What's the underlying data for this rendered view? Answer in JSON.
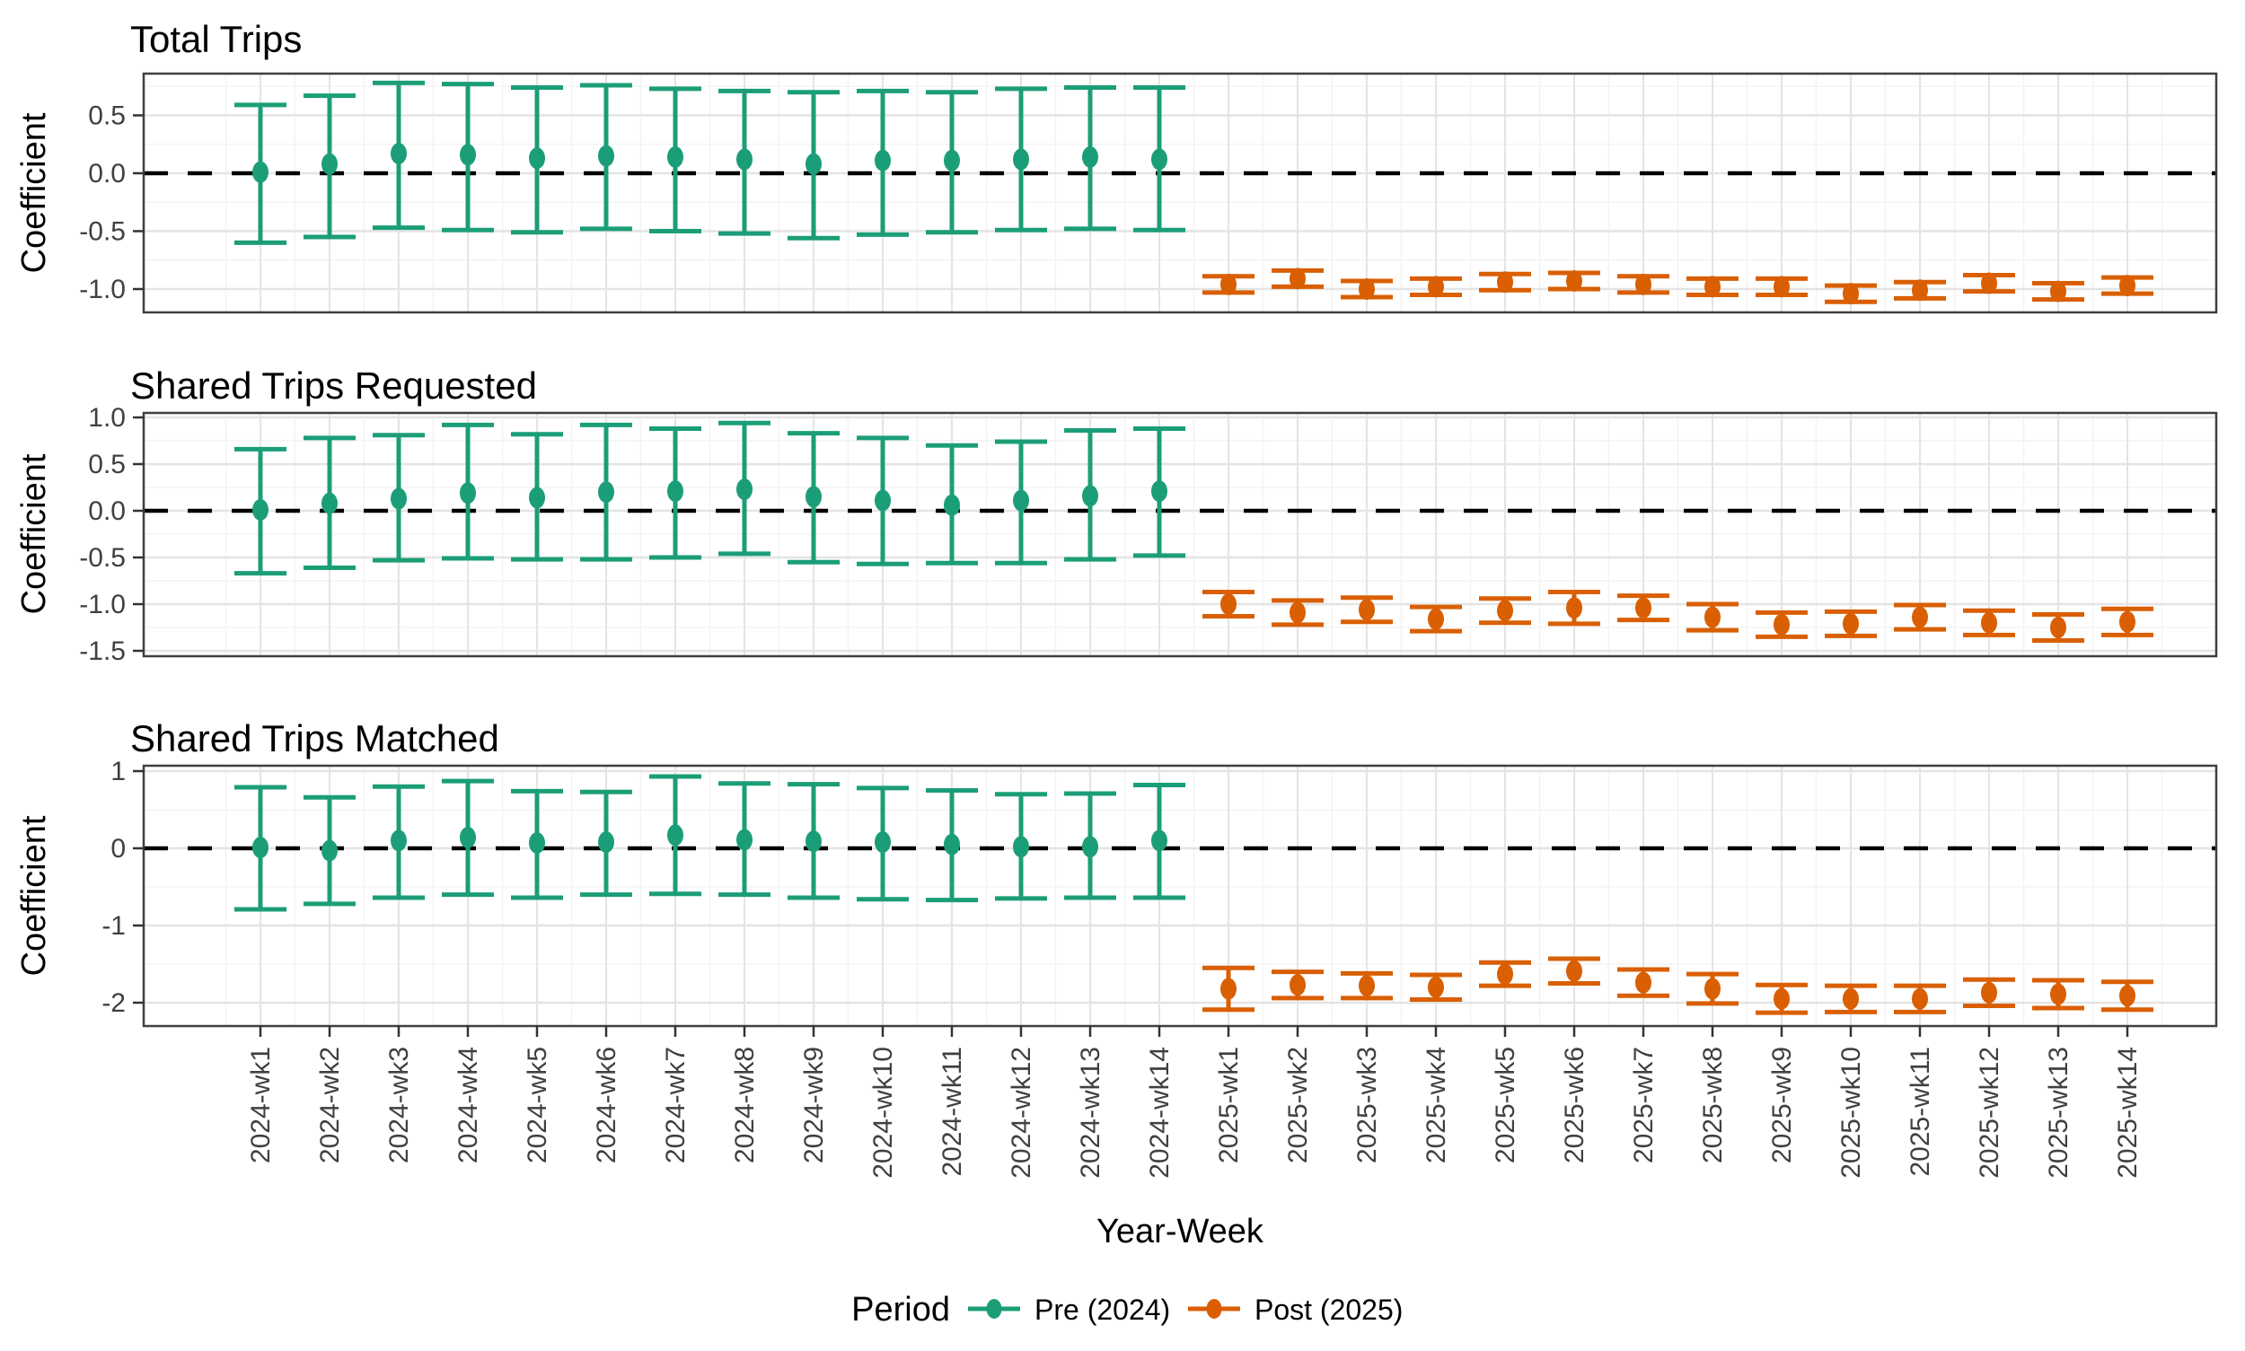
{
  "axis": {
    "x_title": "Year-Week",
    "y_title": "Coefficient"
  },
  "legend": {
    "title": "Period",
    "entries": [
      {
        "label": "Pre (2024)",
        "color": "#1b9e77"
      },
      {
        "label": "Post (2025)",
        "color": "#d95f02"
      }
    ]
  },
  "colors": {
    "pre": "#1b9e77",
    "post": "#d95f02",
    "zero_line": "#000000",
    "grid_major": "#e4e4e4",
    "grid_minor": "#f3f3f3",
    "panel_border": "#3f3f3f",
    "tick_mark": "#333333",
    "tick_text": "#404040"
  },
  "categories": [
    "2024-wk1",
    "2024-wk2",
    "2024-wk3",
    "2024-wk4",
    "2024-wk5",
    "2024-wk6",
    "2024-wk7",
    "2024-wk8",
    "2024-wk9",
    "2024-wk10",
    "2024-wk11",
    "2024-wk12",
    "2024-wk13",
    "2024-wk14",
    "2025-wk1",
    "2025-wk2",
    "2025-wk3",
    "2025-wk4",
    "2025-wk5",
    "2025-wk6",
    "2025-wk7",
    "2025-wk8",
    "2025-wk9",
    "2025-wk10",
    "2025-wk11",
    "2025-wk12",
    "2025-wk13",
    "2025-wk14"
  ],
  "chart_data": [
    {
      "type": "errorbar",
      "title": "Total Trips",
      "ylabel": "Coefficient",
      "xlabel": "Year-Week",
      "grid": true,
      "legend_position": "bottom",
      "ytick_values": [
        0.5,
        0.0,
        -0.5,
        -1.0
      ],
      "ytick_labels": [
        "0.5",
        "0.0",
        "-0.5",
        "-1.0"
      ],
      "yticks_minor": [
        0.75,
        0.25,
        -0.25,
        -0.75
      ],
      "ylim": [
        -1.2,
        0.86
      ],
      "zero_line": 0.0,
      "series": [
        {
          "name": "Pre (2024)",
          "color": "#1b9e77",
          "start_index": 0,
          "estimates": [
            0.01,
            0.08,
            0.17,
            0.16,
            0.13,
            0.15,
            0.14,
            0.12,
            0.08,
            0.11,
            0.11,
            0.12,
            0.14,
            0.12
          ],
          "upper": [
            0.59,
            0.67,
            0.78,
            0.77,
            0.74,
            0.76,
            0.73,
            0.71,
            0.7,
            0.71,
            0.7,
            0.73,
            0.74,
            0.74
          ],
          "lower": [
            -0.6,
            -0.55,
            -0.47,
            -0.49,
            -0.51,
            -0.48,
            -0.5,
            -0.52,
            -0.56,
            -0.53,
            -0.51,
            -0.49,
            -0.48,
            -0.49
          ]
        },
        {
          "name": "Post (2025)",
          "color": "#d95f02",
          "start_index": 14,
          "estimates": [
            -0.96,
            -0.91,
            -1.0,
            -0.98,
            -0.94,
            -0.93,
            -0.96,
            -0.98,
            -0.98,
            -1.04,
            -1.01,
            -0.95,
            -1.02,
            -0.97
          ],
          "upper": [
            -0.89,
            -0.84,
            -0.93,
            -0.91,
            -0.87,
            -0.86,
            -0.89,
            -0.91,
            -0.91,
            -0.97,
            -0.94,
            -0.88,
            -0.95,
            -0.9
          ],
          "lower": [
            -1.03,
            -0.98,
            -1.07,
            -1.05,
            -1.01,
            -1.0,
            -1.03,
            -1.05,
            -1.05,
            -1.11,
            -1.08,
            -1.02,
            -1.09,
            -1.04
          ]
        }
      ]
    },
    {
      "type": "errorbar",
      "title": "Shared Trips Requested",
      "ylabel": "Coefficient",
      "xlabel": "Year-Week",
      "grid": true,
      "legend_position": "bottom",
      "ytick_values": [
        1.0,
        0.5,
        0.0,
        -0.5,
        -1.0,
        -1.5
      ],
      "ytick_labels": [
        "1.0",
        "0.5",
        "0.0",
        "-0.5",
        "-1.0",
        "-1.5"
      ],
      "yticks_minor": [
        0.75,
        0.25,
        -0.25,
        -0.75,
        -1.25
      ],
      "ylim": [
        -1.62,
        1.05
      ],
      "zero_line": 0.0,
      "series": [
        {
          "name": "Pre (2024)",
          "color": "#1b9e77",
          "start_index": 0,
          "estimates": [
            0.01,
            0.08,
            0.13,
            0.19,
            0.14,
            0.2,
            0.21,
            0.23,
            0.15,
            0.11,
            0.06,
            0.11,
            0.16,
            0.21
          ],
          "upper": [
            0.66,
            0.78,
            0.81,
            0.92,
            0.82,
            0.92,
            0.88,
            0.94,
            0.83,
            0.78,
            0.7,
            0.74,
            0.86,
            0.88
          ],
          "lower": [
            -0.67,
            -0.61,
            -0.53,
            -0.51,
            -0.52,
            -0.52,
            -0.5,
            -0.46,
            -0.55,
            -0.57,
            -0.56,
            -0.56,
            -0.52,
            -0.48
          ]
        },
        {
          "name": "Post (2025)",
          "color": "#d95f02",
          "start_index": 14,
          "estimates": [
            -1.0,
            -1.09,
            -1.06,
            -1.16,
            -1.07,
            -1.04,
            -1.04,
            -1.14,
            -1.22,
            -1.21,
            -1.14,
            -1.2,
            -1.25,
            -1.19
          ],
          "upper": [
            -0.87,
            -0.96,
            -0.93,
            -1.03,
            -0.94,
            -0.87,
            -0.91,
            -1.0,
            -1.09,
            -1.08,
            -1.01,
            -1.07,
            -1.11,
            -1.05
          ],
          "lower": [
            -1.13,
            -1.22,
            -1.19,
            -1.29,
            -1.2,
            -1.21,
            -1.17,
            -1.28,
            -1.35,
            -1.34,
            -1.27,
            -1.33,
            -1.39,
            -1.33
          ]
        }
      ]
    },
    {
      "type": "errorbar",
      "title": "Shared Trips Matched",
      "ylabel": "Coefficient",
      "xlabel": "Year-Week",
      "grid": true,
      "legend_position": "bottom",
      "ytick_values": [
        1,
        0,
        -1,
        -2
      ],
      "ytick_labels": [
        "1",
        "0",
        "-1",
        "-2"
      ],
      "yticks_minor": [
        0.5,
        -0.5,
        -1.5
      ],
      "ylim": [
        -2.33,
        1.06
      ],
      "zero_line": 0.0,
      "series": [
        {
          "name": "Pre (2024)",
          "color": "#1b9e77",
          "start_index": 0,
          "estimates": [
            0.01,
            -0.03,
            0.1,
            0.14,
            0.07,
            0.08,
            0.17,
            0.11,
            0.09,
            0.08,
            0.05,
            0.02,
            0.02,
            0.1
          ],
          "upper": [
            0.79,
            0.66,
            0.8,
            0.87,
            0.74,
            0.73,
            0.93,
            0.84,
            0.83,
            0.78,
            0.75,
            0.7,
            0.71,
            0.82
          ],
          "lower": [
            -0.79,
            -0.72,
            -0.64,
            -0.6,
            -0.64,
            -0.6,
            -0.59,
            -0.6,
            -0.64,
            -0.66,
            -0.67,
            -0.65,
            -0.64,
            -0.64
          ]
        },
        {
          "name": "Post (2025)",
          "color": "#d95f02",
          "start_index": 14,
          "estimates": [
            -1.82,
            -1.77,
            -1.78,
            -1.8,
            -1.63,
            -1.59,
            -1.74,
            -1.82,
            -1.95,
            -1.95,
            -1.95,
            -1.87,
            -1.89,
            -1.91
          ],
          "upper": [
            -1.55,
            -1.6,
            -1.62,
            -1.64,
            -1.48,
            -1.43,
            -1.57,
            -1.63,
            -1.77,
            -1.78,
            -1.78,
            -1.7,
            -1.71,
            -1.73
          ],
          "lower": [
            -2.09,
            -1.94,
            -1.94,
            -1.96,
            -1.78,
            -1.75,
            -1.91,
            -2.01,
            -2.13,
            -2.12,
            -2.12,
            -2.04,
            -2.07,
            -2.09
          ]
        }
      ]
    }
  ]
}
